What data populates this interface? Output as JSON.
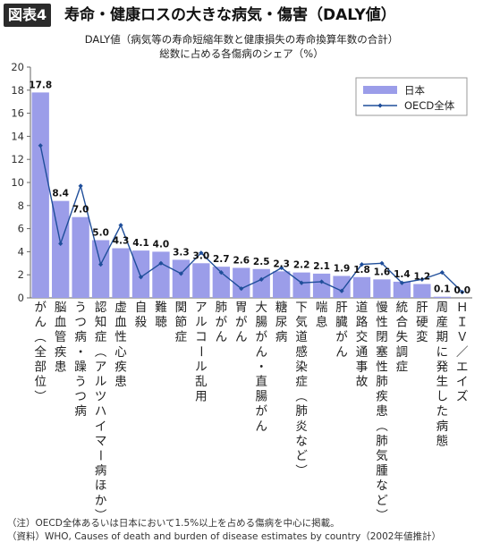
{
  "header": {
    "badge": "図表4",
    "title": "寿命・健康ロスの大きな病気・傷害（DALY値）",
    "subtitle_line1": "DALY値（病気等の寿命短縮年数と健康損失の寿命換算年数の合計）",
    "subtitle_line2": "総数に占める各傷病のシェア（%）"
  },
  "notes": {
    "note": "（注）OECD全体あるいは日本において1.5%以上を占める傷病を中心に掲載。",
    "source": "（資料）WHO, Causes of death and burden of disease estimates by country（2002年値推計）"
  },
  "colors": {
    "bar": "#9b9de9",
    "line": "#1f4e9a",
    "axis": "#666666"
  },
  "chart_data": {
    "type": "bar",
    "title": "寿命・健康ロスの大きな病気・傷害（DALY値）",
    "ylim": [
      0,
      20
    ],
    "yticks": [
      "0",
      "2",
      "4",
      "6",
      "8",
      "10",
      "12",
      "14",
      "16",
      "18",
      "20"
    ],
    "legend_position": "top-right",
    "categories": [
      "がん（全部位）",
      "脳血管疾患",
      "うつ病・躁うつ病",
      "認知症（アルツハイマー病ほか）",
      "虚血性心疾患",
      "自殺",
      "難聴",
      "関節症",
      "アルコール乱用",
      "肺がん",
      "胃がん",
      "大腸がん・直腸がん",
      "糖尿病",
      "下気道感染症（肺炎など）",
      "喘息",
      "肝臓がん",
      "道路交通事故",
      "慢性閉塞性肺疾患（肺気腫など）",
      "統合失調症",
      "肝硬変",
      "周産期に発生した病態",
      "ＨＩＶ／エイズ"
    ],
    "series": [
      {
        "name": "日本",
        "kind": "bar",
        "values": [
          17.8,
          8.4,
          7.0,
          5.0,
          4.3,
          4.1,
          4.0,
          3.3,
          3.0,
          2.7,
          2.6,
          2.5,
          2.3,
          2.2,
          2.1,
          1.9,
          1.8,
          1.6,
          1.4,
          1.2,
          0.1,
          0.0
        ],
        "labels": [
          "17.8",
          "8.4",
          "7.0",
          "5.0",
          "4.3",
          "4.1",
          "4.0",
          "3.3",
          "3.0",
          "2.7",
          "2.6",
          "2.5",
          "2.3",
          "2.2",
          "2.1",
          "1.9",
          "1.8",
          "1.6",
          "1.4",
          "1.2",
          "0.1",
          "0.0"
        ]
      },
      {
        "name": "OECD全体",
        "kind": "line",
        "values": [
          13.2,
          4.7,
          9.7,
          2.9,
          6.3,
          1.8,
          3.0,
          2.1,
          3.9,
          2.2,
          0.8,
          1.6,
          2.6,
          1.3,
          1.4,
          0.6,
          2.9,
          3.0,
          1.3,
          1.6,
          2.2,
          0.5
        ]
      }
    ]
  }
}
